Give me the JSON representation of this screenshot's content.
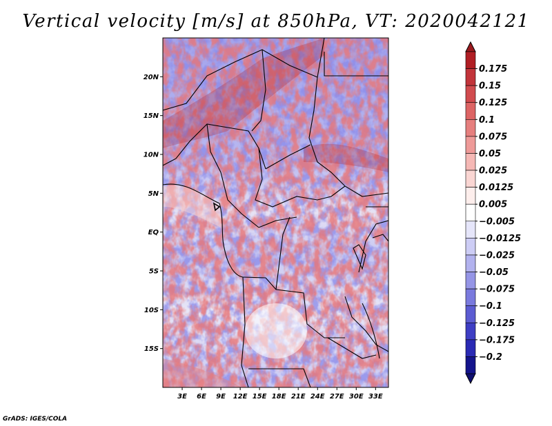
{
  "title": "Vertical velocity [m/s] at 850hPa, VT: 2020042121",
  "credit": "GrADS: IGES/COLA",
  "map": {
    "lat_labels": [
      "20N",
      "15N",
      "10N",
      "5N",
      "EQ",
      "5S",
      "10S",
      "15S"
    ],
    "lon_labels": [
      "3E",
      "6E",
      "9E",
      "12E",
      "15E",
      "18E",
      "21E",
      "24E",
      "27E",
      "30E",
      "33E"
    ],
    "lat_range": [
      -20,
      25
    ],
    "lon_range": [
      0,
      35
    ]
  },
  "colorbar": {
    "labels": [
      "0.175",
      "0.15",
      "0.125",
      "0.1",
      "0.075",
      "0.05",
      "0.025",
      "0.0125",
      "0.005",
      "−0.005",
      "−0.0125",
      "−0.025",
      "−0.05",
      "−0.075",
      "−0.1",
      "−0.125",
      "−0.175",
      "−0.2"
    ],
    "colors": [
      "#b01e24",
      "#c2343a",
      "#d14b4e",
      "#dd6464",
      "#e67f7e",
      "#ee9a98",
      "#f5b8b5",
      "#fad6d3",
      "#fdeeec",
      "#ffffff",
      "#e6e6fa",
      "#cdcdf5",
      "#b2b2ee",
      "#9595e6",
      "#7a7ade",
      "#5c5cd2",
      "#3e3ec4",
      "#2a2ab4",
      "#14148c"
    ],
    "top_color": "#9a1a1e",
    "bottom_color": "#101070"
  }
}
